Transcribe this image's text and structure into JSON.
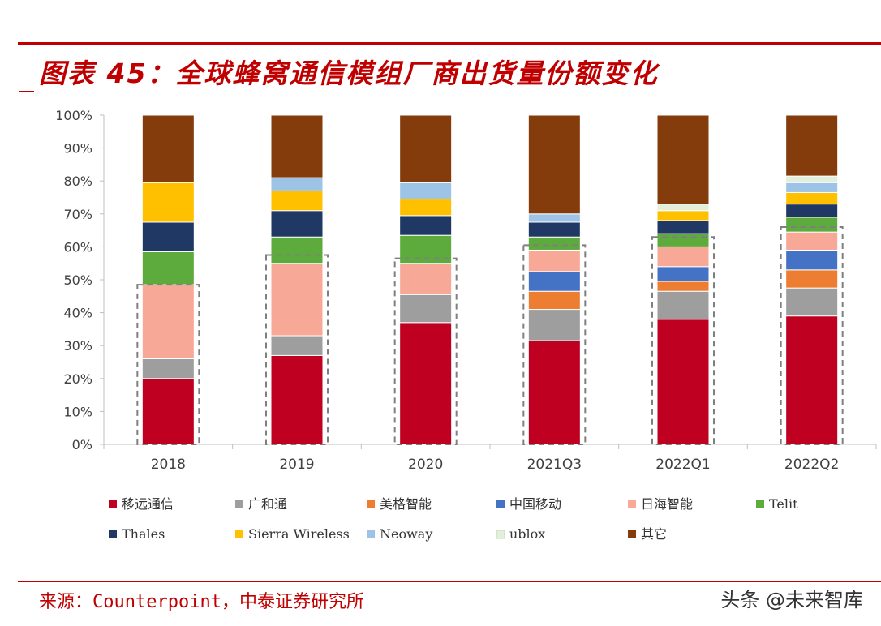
{
  "header": {
    "title": "图表 45：全球蜂窝通信模组厂商出货量份额变化",
    "source": "来源：Counterpoint，中泰证券研究所",
    "watermark": "头条 @未来智库"
  },
  "chart_data": {
    "type": "bar",
    "stacked": true,
    "title": "",
    "xlabel": "",
    "ylabel": "",
    "ylim": [
      0,
      100
    ],
    "yticks": [
      "0%",
      "10%",
      "20%",
      "30%",
      "40%",
      "50%",
      "60%",
      "70%",
      "80%",
      "90%",
      "100%"
    ],
    "categories": [
      "2018",
      "2019",
      "2020",
      "2021Q3",
      "2022Q1",
      "2022Q2"
    ],
    "legend_position": "bottom",
    "series": [
      {
        "name": "移远通信",
        "color": "#c00020",
        "values": [
          20,
          27,
          37,
          31.5,
          38,
          39
        ]
      },
      {
        "name": "广和通",
        "color": "#9e9e9e",
        "values": [
          6,
          6,
          8.5,
          9.5,
          8.5,
          8.5
        ]
      },
      {
        "name": "美格智能",
        "color": "#ed7d31",
        "values": [
          0,
          0,
          0,
          5.5,
          3,
          5.5
        ]
      },
      {
        "name": "中国移动",
        "color": "#4472c4",
        "values": [
          0,
          0,
          0,
          6,
          4.5,
          6
        ]
      },
      {
        "name": "日海智能",
        "color": "#f8a896",
        "values": [
          22.5,
          22,
          9.5,
          6.5,
          6,
          5.5
        ]
      },
      {
        "name": "Telit",
        "color": "#5dab3c",
        "values": [
          10,
          8,
          8.5,
          4,
          4,
          4.5
        ]
      },
      {
        "name": "Thales",
        "color": "#203864",
        "values": [
          9,
          8,
          6,
          4.5,
          4,
          4
        ]
      },
      {
        "name": "Sierra Wireless",
        "color": "#ffc000",
        "values": [
          12,
          6,
          5,
          0,
          3,
          3.5
        ]
      },
      {
        "name": "Neoway",
        "color": "#9dc3e6",
        "values": [
          0,
          4,
          5,
          2.5,
          0,
          3
        ]
      },
      {
        "name": "ublox",
        "color": "#e2efda",
        "values": [
          0,
          0,
          0,
          0,
          2,
          2
        ]
      },
      {
        "name": "其它",
        "color": "#843c0c",
        "values": [
          20.5,
          19,
          20.5,
          30,
          27,
          18.5
        ]
      }
    ],
    "highlight_boxes": [
      48.5,
      57.5,
      56.5,
      60.5,
      63,
      66
    ]
  }
}
